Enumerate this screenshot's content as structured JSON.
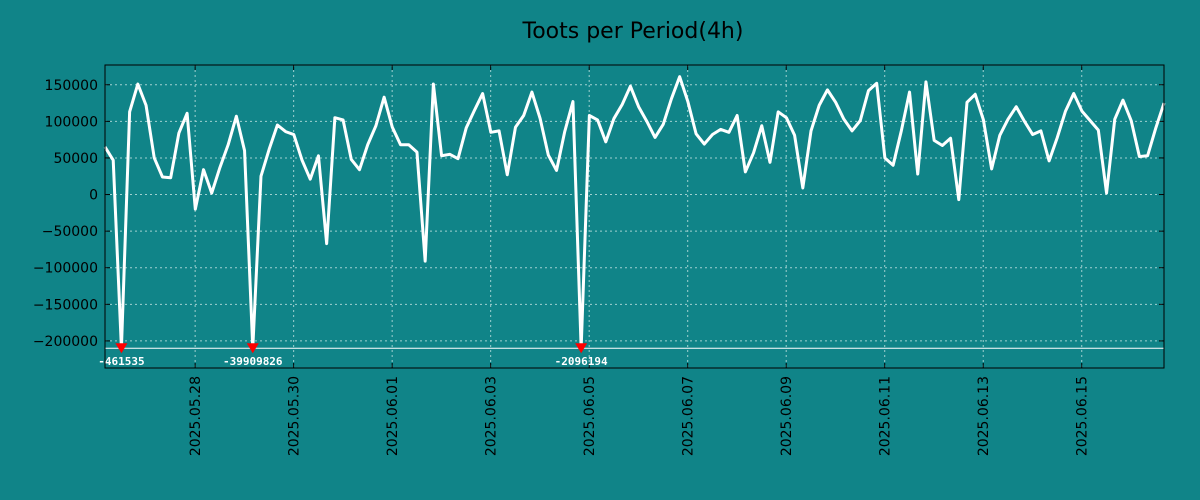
{
  "colors": {
    "background": "#108488",
    "line": "#ffffff",
    "grid": "#9fd0d0",
    "marker": "#ff0000"
  },
  "chart_data": {
    "type": "line",
    "title": "Toots per Period(4h)",
    "xlabel": "",
    "ylabel": "",
    "ylim": [
      -237000,
      177000
    ],
    "yticks": [
      150000,
      100000,
      50000,
      0,
      -50000,
      -100000,
      -150000,
      -200000
    ],
    "ytick_labels": [
      "150000",
      "100000",
      "50000",
      "0",
      "−50000",
      "−100000",
      "−150000",
      "−200000"
    ],
    "xlim_days": [
      0,
      21.5
    ],
    "xticks": [
      {
        "day": 1.83,
        "label": "2025.05.28"
      },
      {
        "day": 3.83,
        "label": "2025.05.30"
      },
      {
        "day": 5.83,
        "label": "2025.06.01"
      },
      {
        "day": 7.83,
        "label": "2025.06.03"
      },
      {
        "day": 9.83,
        "label": "2025.06.05"
      },
      {
        "day": 11.83,
        "label": "2025.06.07"
      },
      {
        "day": 13.83,
        "label": "2025.06.09"
      },
      {
        "day": 15.83,
        "label": "2025.06.11"
      },
      {
        "day": 17.83,
        "label": "2025.06.13"
      },
      {
        "day": 19.83,
        "label": "2025.06.15"
      }
    ],
    "grid": true,
    "series": [
      {
        "name": "Toots",
        "step_days": 0.16667,
        "values": [
          65000,
          47000,
          -210000,
          113000,
          151000,
          122000,
          50000,
          24000,
          23000,
          84000,
          111000,
          -20000,
          34000,
          2000,
          37000,
          68000,
          107000,
          60000,
          -210000,
          25000,
          62000,
          95000,
          86000,
          82000,
          47000,
          21000,
          53000,
          -67000,
          105000,
          102000,
          48000,
          34000,
          68000,
          94000,
          133000,
          92000,
          68000,
          68000,
          58000,
          -91000,
          151000,
          53000,
          55000,
          49000,
          91000,
          115000,
          138000,
          85000,
          87000,
          27000,
          92000,
          108000,
          140000,
          104000,
          54000,
          33000,
          86000,
          127000,
          -210000,
          108000,
          102000,
          72000,
          104000,
          123000,
          148000,
          120000,
          100000,
          78000,
          96000,
          131000,
          161000,
          127000,
          83000,
          69000,
          82000,
          89000,
          85000,
          108000,
          31000,
          57000,
          94000,
          44000,
          113000,
          105000,
          81000,
          9000,
          87000,
          122000,
          143000,
          126000,
          103000,
          87000,
          101000,
          142000,
          152000,
          50000,
          40000,
          87000,
          140000,
          28000,
          154000,
          74000,
          67000,
          77000,
          -7000,
          126000,
          137000,
          102000,
          35000,
          81000,
          103000,
          120000,
          100000,
          82000,
          87000,
          46000,
          78000,
          114000,
          138000,
          114000,
          101000,
          88000,
          2000,
          103000,
          129000,
          101000,
          52000,
          53000,
          91000,
          125000
        ]
      }
    ],
    "clip_value": -210000,
    "annotations": [
      {
        "index": 2,
        "label": "-461535"
      },
      {
        "index": 18,
        "label": "-39909826"
      },
      {
        "index": 58,
        "label": "-2096194"
      }
    ]
  }
}
